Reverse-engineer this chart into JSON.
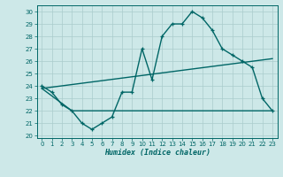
{
  "title": "",
  "xlabel": "Humidex (Indice chaleur)",
  "ylabel": "",
  "bg_color": "#cde8e8",
  "grid_color": "#aacccc",
  "line_color": "#006666",
  "xlim": [
    -0.5,
    23.5
  ],
  "ylim": [
    19.8,
    30.5
  ],
  "yticks": [
    20,
    21,
    22,
    23,
    24,
    25,
    26,
    27,
    28,
    29,
    30
  ],
  "xticks": [
    0,
    1,
    2,
    3,
    4,
    5,
    6,
    7,
    8,
    9,
    10,
    11,
    12,
    13,
    14,
    15,
    16,
    17,
    18,
    19,
    20,
    21,
    22,
    23
  ],
  "line1_x": [
    0,
    1,
    2,
    3,
    4,
    5,
    6,
    7,
    8,
    9,
    10,
    11,
    12,
    13,
    14,
    15,
    16,
    17,
    18,
    19,
    20,
    21,
    22,
    23
  ],
  "line1_y": [
    24.0,
    23.5,
    22.5,
    22.0,
    21.0,
    20.5,
    21.0,
    21.5,
    23.5,
    23.5,
    27.0,
    24.5,
    28.0,
    29.0,
    29.0,
    30.0,
    29.5,
    28.5,
    27.0,
    26.5,
    26.0,
    25.5,
    23.0,
    22.0
  ],
  "line2_x": [
    0,
    23
  ],
  "line2_y": [
    23.8,
    26.2
  ],
  "line3_x": [
    0,
    3,
    10,
    19,
    23
  ],
  "line3_y": [
    23.8,
    22.0,
    22.0,
    22.0,
    22.0
  ]
}
